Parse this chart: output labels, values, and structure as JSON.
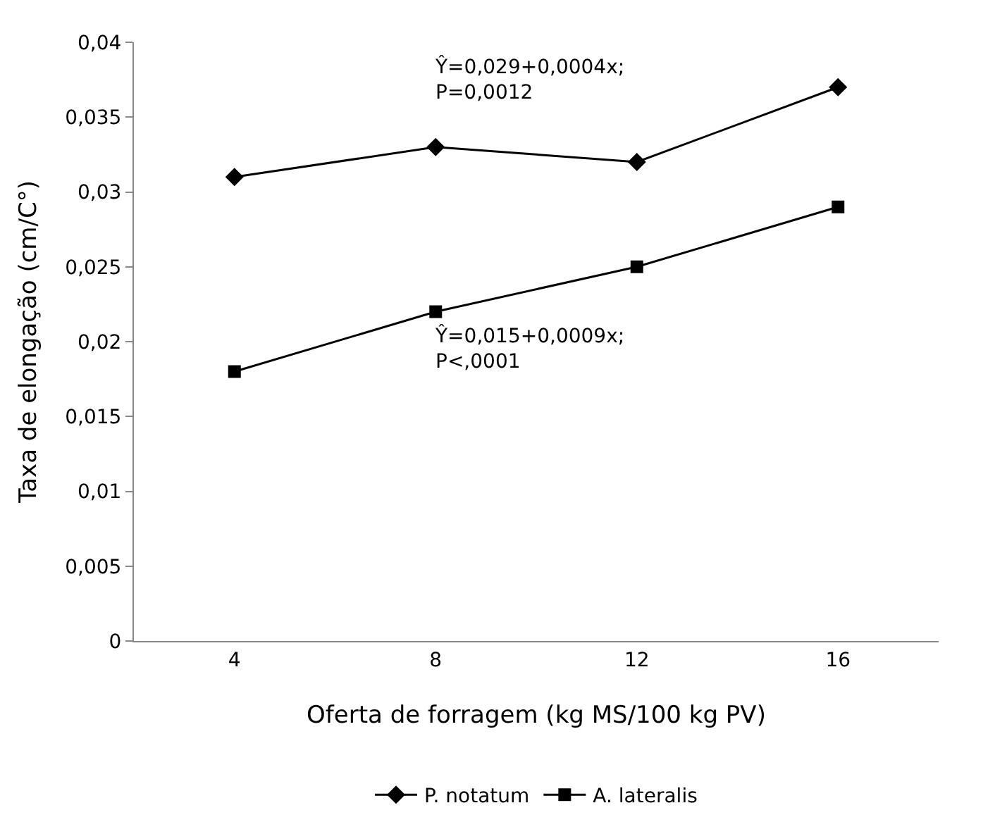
{
  "chart_data": {
    "type": "line",
    "xlabel": "Oferta de forragem (kg MS/100 kg PV)",
    "ylabel": "Taxa de elongação (cm/C°)",
    "categories": [
      "4",
      "8",
      "12",
      "16"
    ],
    "series": [
      {
        "name": "P. notatum",
        "color": "#000000",
        "marker": "diamond",
        "values": [
          0.031,
          0.033,
          0.032,
          0.037
        ]
      },
      {
        "name": "A. lateralis",
        "color": "#000000",
        "marker": "square",
        "values": [
          0.018,
          0.022,
          0.025,
          0.029
        ]
      }
    ],
    "ylim": [
      0,
      0.04
    ],
    "yticks": [
      0,
      {
        "value": 0.005,
        "label": "0,005"
      },
      {
        "value": 0.01,
        "label": "0,01"
      },
      {
        "value": 0.015,
        "label": "0,015"
      },
      {
        "value": 0.02,
        "label": "0,02"
      },
      {
        "value": 0.025,
        "label": "0,025"
      },
      {
        "value": 0.03,
        "label": "0,03"
      },
      {
        "value": 0.035,
        "label": "0,035"
      },
      {
        "value": 0.04,
        "label": "0,04"
      }
    ],
    "annotations": [
      "Ŷ=0,029+0,0004x;\nP=0,0012",
      "Ŷ=0,015+0,0009x;\nP<,0001"
    ],
    "legend": "bottom",
    "line_style": "solid"
  }
}
